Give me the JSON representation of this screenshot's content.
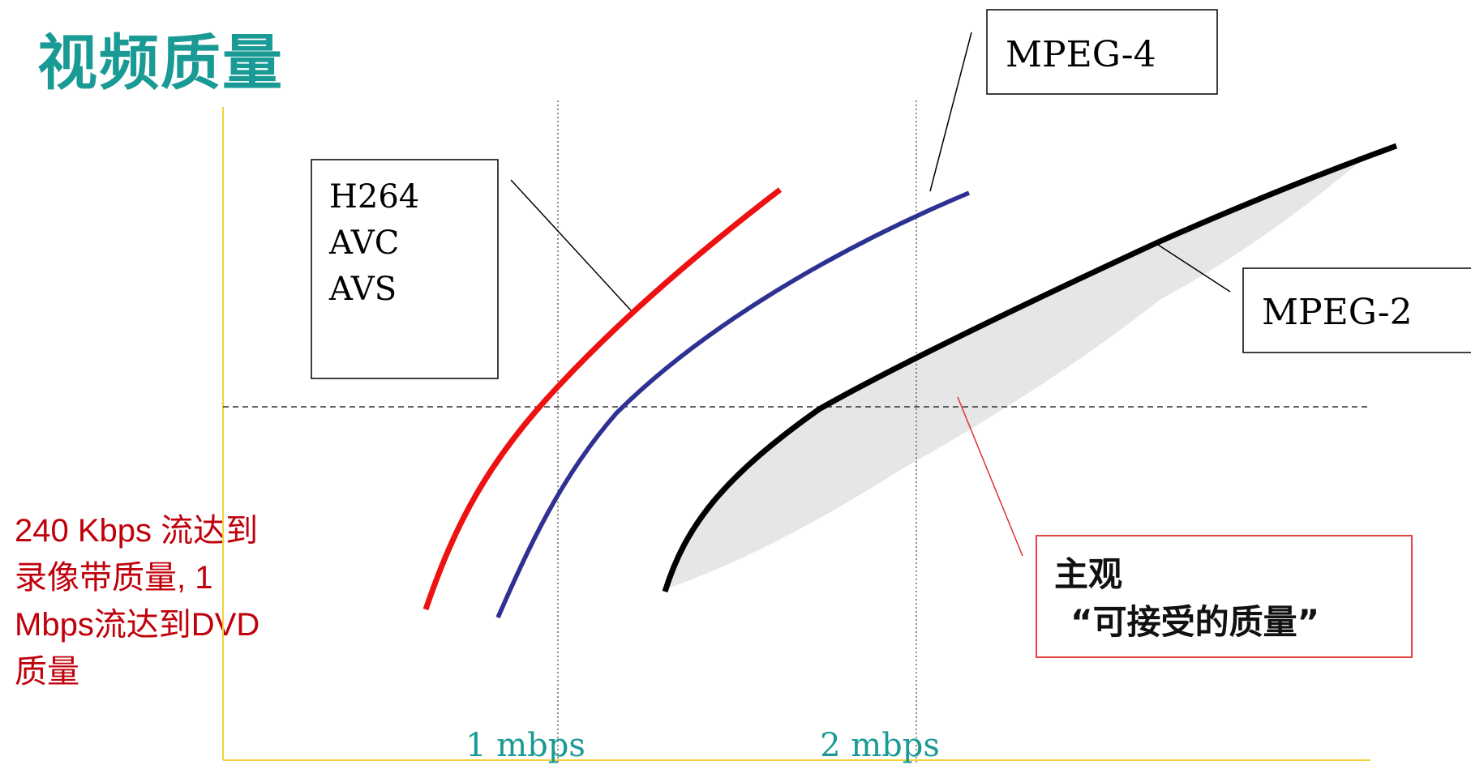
{
  "title": "视频质量",
  "note_lines": [
    "240 Kbps 流达到",
    "录像带质量, 1",
    "Mbps流达到DVD",
    "质量"
  ],
  "chart_data": {
    "type": "line",
    "x_ticks": [
      "1 mbps",
      "2 mbps"
    ],
    "threshold_label": [
      "主观",
      "“可接受的质量”"
    ],
    "series": [
      {
        "name": "H264 AVC AVS",
        "label_lines": [
          "H264",
          "AVC",
          "AVS"
        ],
        "color": "#ee1111"
      },
      {
        "name": "MPEG-4",
        "label_lines": [
          "MPEG-4"
        ],
        "color": "#2e3192"
      },
      {
        "name": "MPEG-2",
        "label_lines": [
          "MPEG-2"
        ],
        "color": "#000000"
      }
    ],
    "grid": false,
    "colors": {
      "axis": "#f2d23a",
      "tick_label": "#1a9a94",
      "threshold_box": "#e03030",
      "shade": "#e6e6e6"
    }
  }
}
